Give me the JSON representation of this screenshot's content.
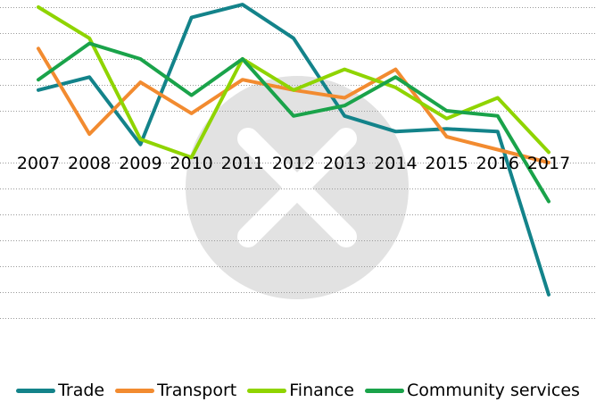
{
  "chart_data": {
    "type": "line",
    "categories": [
      "2007",
      "2008",
      "2009",
      "2010",
      "2011",
      "2012",
      "2013",
      "2014",
      "2015",
      "2016",
      "2017"
    ],
    "ylim": [
      -7,
      5
    ],
    "grid": true,
    "legend_position": "bottom",
    "series": [
      {
        "name": "Trade",
        "color": "#13838a",
        "values": [
          1.8,
          2.3,
          -0.3,
          4.6,
          5.1,
          3.8,
          0.8,
          0.2,
          0.3,
          0.2,
          -6.1
        ]
      },
      {
        "name": "Transport",
        "color": "#f28b30",
        "values": [
          3.4,
          0.1,
          2.1,
          0.9,
          2.2,
          1.8,
          1.5,
          2.6,
          0.0,
          -0.5,
          -1.0
        ]
      },
      {
        "name": "Finance",
        "color": "#8fd400",
        "values": [
          5.0,
          3.8,
          -0.1,
          -0.8,
          3.0,
          1.8,
          2.6,
          1.9,
          0.7,
          1.5,
          -0.6
        ]
      },
      {
        "name": "Community services",
        "color": "#1aa34a",
        "values": [
          2.2,
          3.6,
          3.0,
          1.6,
          3.0,
          0.8,
          1.2,
          2.3,
          1.0,
          0.8,
          -2.5
        ]
      }
    ]
  }
}
